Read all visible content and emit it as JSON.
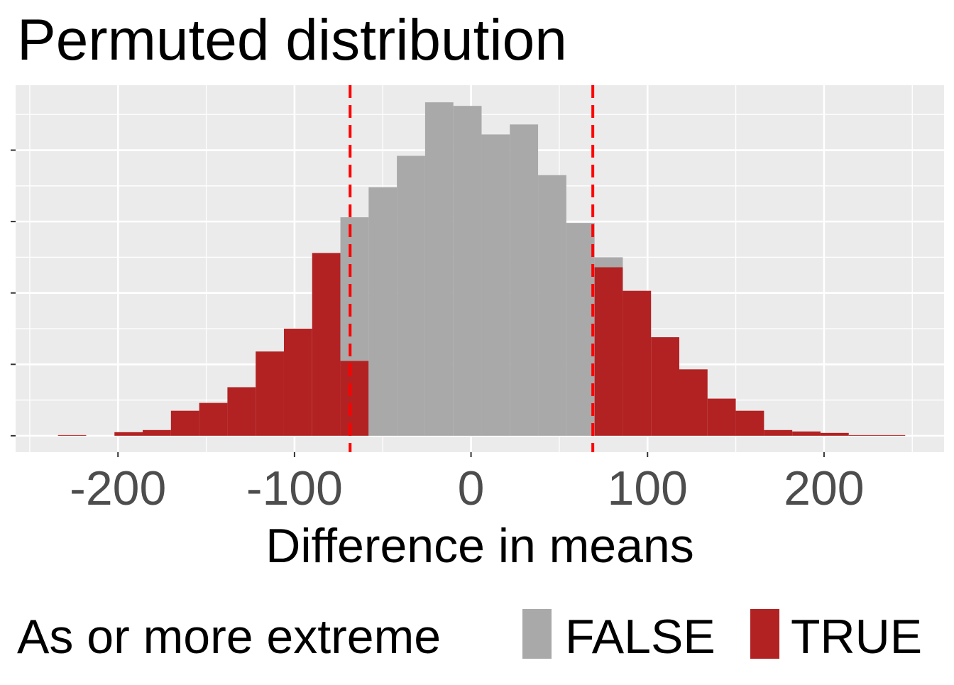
{
  "chart_data": {
    "type": "bar",
    "title": "Permuted distribution",
    "xlabel": "Difference in means",
    "ylabel": "",
    "xlim": [
      -258,
      268
    ],
    "ylim": [
      -23,
      491
    ],
    "x_ticks": [
      -200,
      -100,
      0,
      100,
      200
    ],
    "x_tick_labels": [
      "-200",
      "-100",
      "0",
      "100",
      "200"
    ],
    "y_ticks": [
      0,
      100,
      200,
      300,
      400
    ],
    "y_tick_labels_shown": false,
    "grid": true,
    "bin_width": 16,
    "bin_centers": [
      -226,
      -210,
      -194,
      -178,
      -162,
      -146,
      -130,
      -114,
      -98,
      -82,
      -66,
      -50,
      -34,
      -18,
      -2,
      14,
      30,
      46,
      62,
      78,
      94,
      110,
      126,
      142,
      158,
      174,
      190,
      206,
      222,
      238
    ],
    "series": [
      {
        "name": "FALSE",
        "color": "#A9A9A9",
        "values": [
          0,
          0,
          0,
          0,
          0,
          0,
          0,
          0,
          0,
          0,
          201,
          348,
          392,
          467,
          462,
          422,
          436,
          365,
          298,
          14,
          0,
          0,
          0,
          0,
          0,
          0,
          0,
          0,
          0,
          0
        ]
      },
      {
        "name": "TRUE",
        "color": "#B22222",
        "values": [
          1,
          0,
          5,
          8,
          35,
          46,
          68,
          118,
          150,
          256,
          105,
          0,
          0,
          0,
          0,
          0,
          0,
          0,
          0,
          236,
          203,
          138,
          93,
          52,
          35,
          8,
          6,
          4,
          1,
          1
        ]
      }
    ],
    "stacked": true,
    "reference_lines": {
      "x": [
        -68.5,
        69
      ],
      "color": "#FF0000",
      "style": "dashed"
    },
    "legend": {
      "title": "As or more extreme",
      "position": "bottom",
      "entries": [
        "FALSE",
        "TRUE"
      ]
    }
  }
}
